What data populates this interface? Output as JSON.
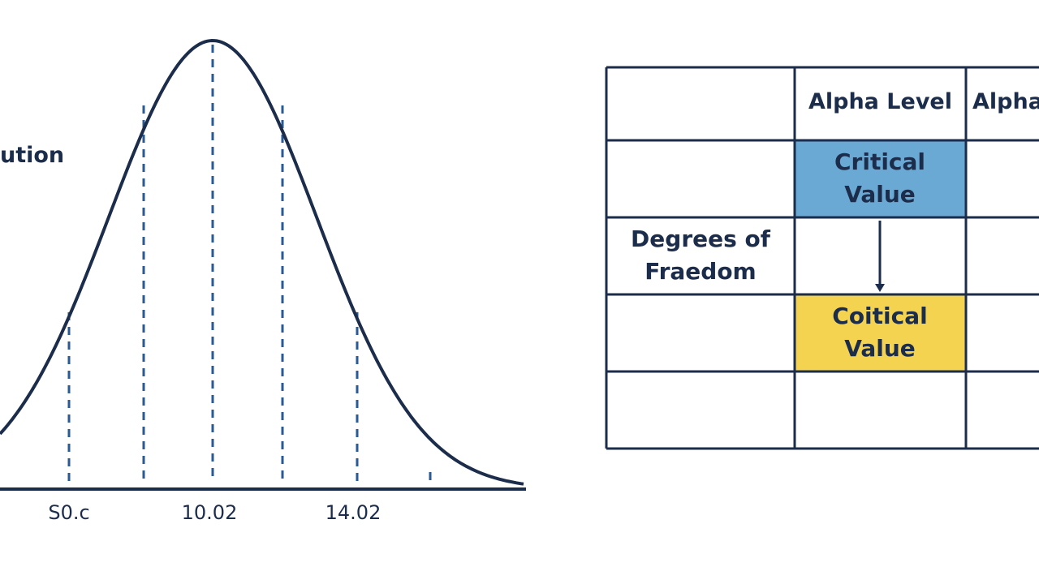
{
  "left_panel": {
    "title_fragment": "ution",
    "axis_labels": [
      "S0.c",
      "10.02",
      "14.02"
    ]
  },
  "table": {
    "column_headers": [
      "Alpha Level",
      "Alpha"
    ],
    "row_label": "Degrees of Fraedom",
    "highlight_blue": "Critical Value",
    "highlight_yellow": "Coitical Value"
  }
}
